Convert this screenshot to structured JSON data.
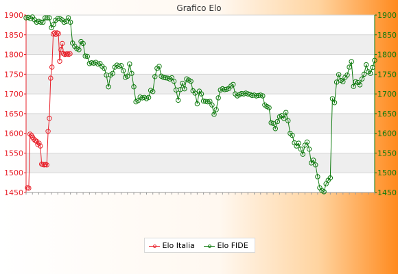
{
  "chart_data": {
    "type": "line",
    "title": "Grafico Elo",
    "xlabel": "",
    "ylabel": "",
    "ylim": [
      1450,
      1900
    ],
    "yticks": [
      1450,
      1500,
      1550,
      1600,
      1650,
      1700,
      1750,
      1800,
      1850,
      1900
    ],
    "secondary_axis": true,
    "grid": "horizontal bands",
    "legend_position": "bottom",
    "series": [
      {
        "name": "Elo Italia",
        "color": "#e8202a",
        "values": [
          1462,
          1461,
          1598,
          1595,
          1590,
          1585,
          1582,
          1580,
          1572,
          1575,
          1568,
          1522,
          1521,
          1520,
          1521,
          1520,
          1605,
          1638,
          1740,
          1768,
          1852,
          1855,
          1851,
          1855,
          1853,
          1783,
          1812,
          1828,
          1802,
          1800,
          1801,
          1802,
          1800,
          1802
        ]
      },
      {
        "name": "Elo FIDE",
        "color": "#0d7a0d",
        "values": [
          1893,
          1894,
          1891,
          1895,
          1888,
          1882,
          1884,
          1882,
          1882,
          1893,
          1893,
          1893,
          1868,
          1876,
          1887,
          1891,
          1891,
          1888,
          1882,
          1884,
          1893,
          1882,
          1829,
          1821,
          1815,
          1812,
          1833,
          1828,
          1796,
          1795,
          1777,
          1779,
          1778,
          1780,
          1776,
          1777,
          1770,
          1765,
          1748,
          1718,
          1748,
          1752,
          1768,
          1773,
          1770,
          1772,
          1759,
          1742,
          1745,
          1776,
          1752,
          1718,
          1680,
          1683,
          1692,
          1690,
          1691,
          1688,
          1691,
          1709,
          1706,
          1744,
          1765,
          1770,
          1745,
          1742,
          1741,
          1740,
          1738,
          1741,
          1732,
          1710,
          1684,
          1711,
          1727,
          1713,
          1738,
          1735,
          1732,
          1708,
          1702,
          1675,
          1707,
          1700,
          1682,
          1681,
          1680,
          1681,
          1672,
          1648,
          1660,
          1690,
          1710,
          1713,
          1711,
          1712,
          1714,
          1720,
          1724,
          1700,
          1695,
          1698,
          1701,
          1700,
          1702,
          1700,
          1699,
          1696,
          1697,
          1695,
          1696,
          1697,
          1695,
          1672,
          1668,
          1665,
          1627,
          1625,
          1612,
          1630,
          1642,
          1645,
          1638,
          1653,
          1632,
          1600,
          1595,
          1576,
          1568,
          1575,
          1560,
          1547,
          1570,
          1578,
          1560,
          1525,
          1532,
          1520,
          1490,
          1462,
          1455,
          1452,
          1472,
          1481,
          1487,
          1688,
          1678,
          1730,
          1749,
          1734,
          1731,
          1742,
          1748,
          1768,
          1782,
          1719,
          1731,
          1729,
          1723,
          1738,
          1750,
          1774,
          1756,
          1752,
          1767,
          1785
        ]
      }
    ]
  }
}
